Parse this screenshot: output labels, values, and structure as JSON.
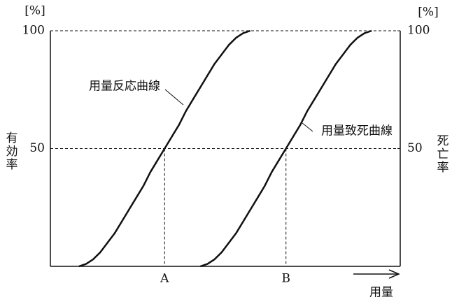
{
  "chart_data": {
    "type": "line",
    "y_unit": "[%]",
    "y2_unit": "[%]",
    "ylabel": "有効率",
    "y2label": "死亡率",
    "xlabel": "用量",
    "categories": [
      null,
      null,
      null,
      null,
      null,
      null,
      null,
      null,
      null,
      null,
      null,
      null,
      null,
      null,
      null,
      null,
      "A",
      null,
      null,
      null,
      null,
      null,
      null,
      null,
      null,
      null,
      null,
      null,
      null,
      null,
      null,
      null,
      null,
      "B",
      null,
      null,
      null,
      null,
      null,
      null,
      null,
      null,
      null,
      null,
      null,
      null,
      null,
      null,
      null,
      null
    ],
    "series": [
      {
        "name": "用量反応曲線",
        "color": "#111111",
        "values": [
          null,
          null,
          null,
          null,
          0,
          1,
          3,
          6,
          10,
          14,
          19,
          24,
          29,
          34,
          40,
          45,
          50,
          55,
          60,
          66,
          71,
          76,
          81,
          86,
          90,
          94,
          97,
          99,
          100,
          null,
          null,
          null,
          null,
          null,
          null,
          null,
          null,
          null,
          null,
          null,
          null,
          null,
          null,
          null,
          null,
          null,
          null,
          null,
          null,
          null
        ]
      },
      {
        "name": "用量致死曲線",
        "color": "#111111",
        "axis": "y2",
        "values": [
          null,
          null,
          null,
          null,
          null,
          null,
          null,
          null,
          null,
          null,
          null,
          null,
          null,
          null,
          null,
          null,
          null,
          null,
          null,
          null,
          null,
          0,
          1,
          3,
          6,
          10,
          14,
          19,
          24,
          29,
          34,
          40,
          45,
          50,
          55,
          60,
          66,
          71,
          76,
          81,
          86,
          90,
          94,
          97,
          99,
          100,
          null,
          null,
          null,
          null
        ]
      }
    ],
    "ylim": [
      0,
      100
    ],
    "yticks": [
      50,
      100
    ],
    "y2lim": [
      0,
      100
    ],
    "y2ticks": [
      50,
      100
    ],
    "grid": true
  }
}
